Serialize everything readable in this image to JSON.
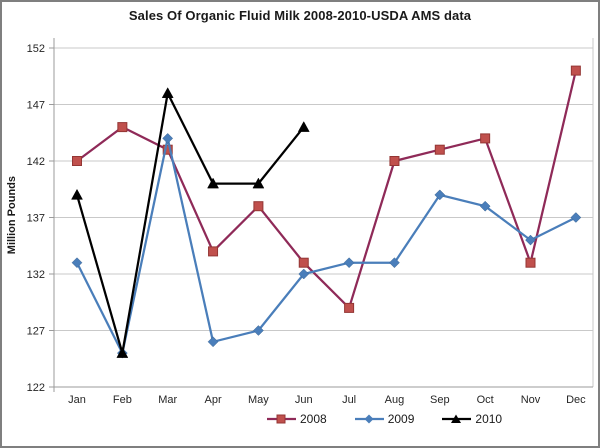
{
  "title": "Sales Of Organic Fluid Milk 2008-2010-USDA AMS data",
  "y_axis_label": "Million Pounds",
  "style": {
    "background": "#FFFFFF",
    "outer_border_color": "#7F7F7F",
    "grid_color": "#C9C9C9",
    "axis_color": "#9B9B9B",
    "text_color": "#262626"
  },
  "chart_data": {
    "type": "line",
    "title": "Sales Of Organic Fluid Milk 2008-2010-USDA AMS data",
    "xlabel": "",
    "ylabel": "Million Pounds",
    "ylim": [
      122,
      152
    ],
    "yticks": [
      122,
      127,
      132,
      137,
      142,
      147,
      152
    ],
    "grid": true,
    "legend_position": "bottom",
    "categories": [
      "Jan",
      "Feb",
      "Mar",
      "Apr",
      "May",
      "Jun",
      "Jul",
      "Aug",
      "Sep",
      "Oct",
      "Nov",
      "Dec"
    ],
    "series": [
      {
        "name": "2008",
        "color": "#8F2A58",
        "marker": "square",
        "marker_color": "#C0504D",
        "marker_border": "#943634",
        "values": [
          142,
          145,
          143,
          134,
          138,
          133,
          129,
          142,
          143,
          144,
          133,
          150
        ]
      },
      {
        "name": "2009",
        "color": "#4A7EBA",
        "marker": "diamond",
        "marker_color": "#4A7EBA",
        "marker_border": "#36618F",
        "values": [
          133,
          125,
          144,
          126,
          127,
          132,
          133,
          133,
          139,
          138,
          135,
          137
        ]
      },
      {
        "name": "2010",
        "color": "#000000",
        "marker": "triangle",
        "marker_color": "#000000",
        "marker_border": "#000000",
        "values": [
          139,
          125,
          148,
          140,
          140,
          145,
          null,
          null,
          null,
          null,
          null,
          null
        ]
      }
    ]
  }
}
